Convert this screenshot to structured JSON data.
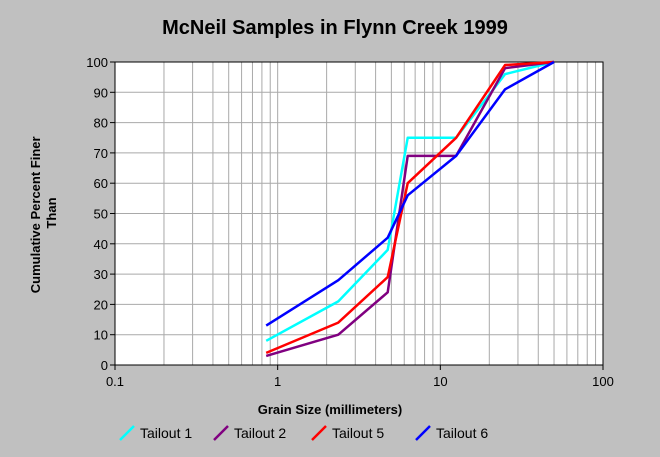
{
  "chart_data": {
    "type": "line",
    "title": "McNeil Samples in Flynn Creek 1999",
    "xlabel": "Grain Size (millimeters)",
    "ylabel_lines": [
      "Cumulative Percent Finer",
      "Than"
    ],
    "x_scale": "log",
    "xlim": [
      0.1,
      100
    ],
    "ylim": [
      0,
      100
    ],
    "x_ticks": [
      0.1,
      1,
      10,
      100
    ],
    "x_tick_labels": [
      "0.1",
      "1",
      "10",
      "100"
    ],
    "y_ticks": [
      0,
      10,
      20,
      30,
      40,
      50,
      60,
      70,
      80,
      90,
      100
    ],
    "y_tick_labels": [
      "0",
      "10",
      "20",
      "30",
      "40",
      "50",
      "60",
      "70",
      "80",
      "90",
      "100"
    ],
    "grid": true,
    "legend_position": "bottom",
    "series": [
      {
        "name": "Tailout 1",
        "color": "#00ffff",
        "x": [
          0.85,
          2.36,
          4.75,
          6.3,
          12.5,
          25,
          50
        ],
        "y": [
          8,
          21,
          38,
          75,
          75,
          96,
          100
        ]
      },
      {
        "name": "Tailout 2",
        "color": "#800080",
        "x": [
          0.85,
          2.36,
          4.75,
          6.3,
          12.5,
          25,
          50
        ],
        "y": [
          3,
          10,
          24,
          69,
          69,
          98,
          100
        ]
      },
      {
        "name": "Tailout 5",
        "color": "#ff0000",
        "x": [
          0.85,
          2.36,
          4.75,
          6.3,
          12.5,
          25,
          50
        ],
        "y": [
          4,
          14,
          29,
          60,
          75,
          99,
          100
        ]
      },
      {
        "name": "Tailout 6",
        "color": "#0000ff",
        "x": [
          0.85,
          2.36,
          4.75,
          6.3,
          12.5,
          25,
          50
        ],
        "y": [
          13,
          28,
          42,
          56,
          69,
          91,
          100
        ]
      }
    ]
  }
}
